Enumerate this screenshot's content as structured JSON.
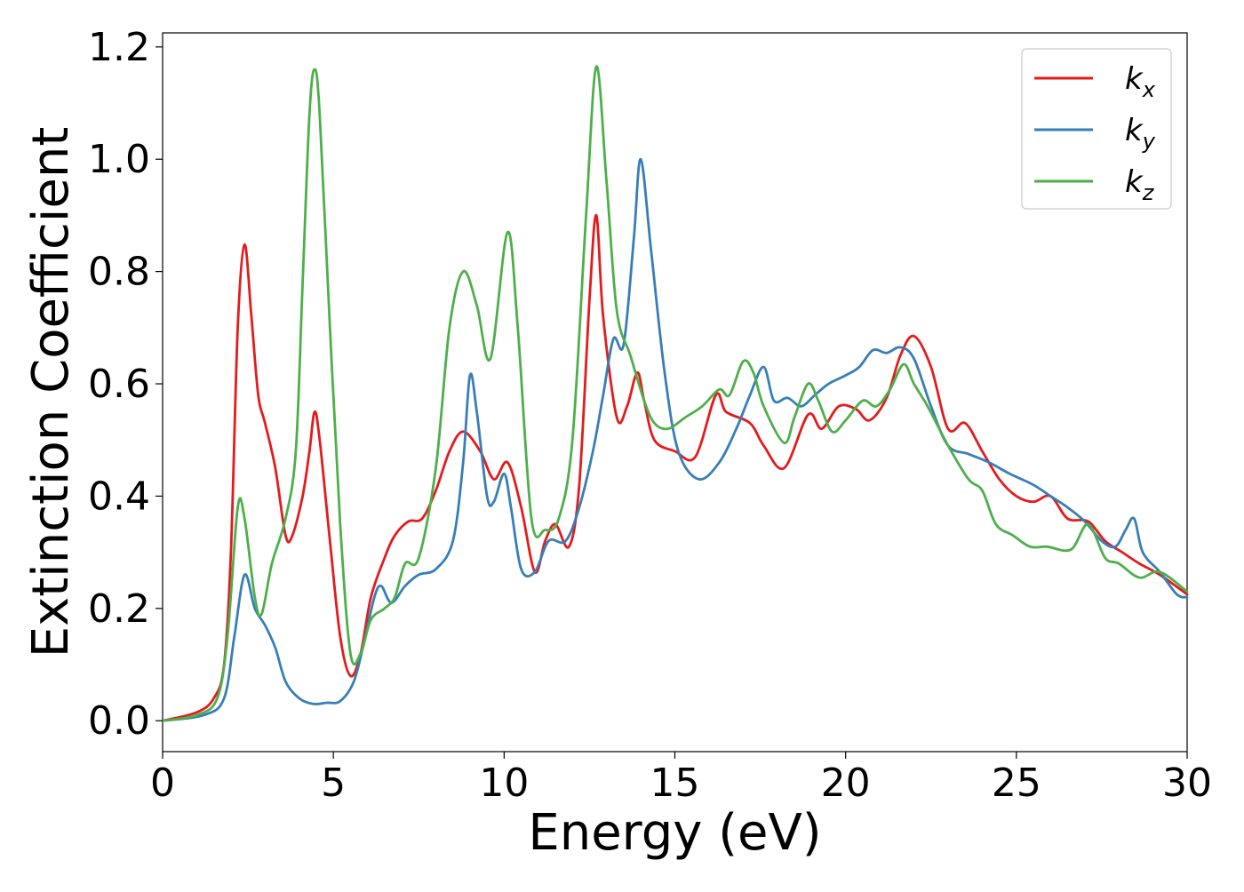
{
  "chart_data": {
    "type": "line",
    "title": "",
    "xlabel": "Energy (eV)",
    "ylabel": "Extinction Coefficient",
    "xlim": [
      0,
      30
    ],
    "ylim": [
      -0.055,
      1.225
    ],
    "xticks": [
      0,
      5,
      10,
      15,
      20,
      25,
      30
    ],
    "yticks": [
      0.0,
      0.2,
      0.4,
      0.6,
      0.8,
      1.0,
      1.2
    ],
    "xtick_labels": [
      "0",
      "5",
      "10",
      "15",
      "20",
      "25",
      "30"
    ],
    "ytick_labels": [
      "0.0",
      "0.2",
      "0.4",
      "0.6",
      "0.8",
      "1.0",
      "1.2"
    ],
    "grid": false,
    "legend_position": "top-right",
    "series": [
      {
        "name": "k_x",
        "label_base": "k",
        "label_sub": "x",
        "color": "#e41a1c",
        "points": [
          [
            0,
            0.0
          ],
          [
            1,
            0.015
          ],
          [
            1.5,
            0.04
          ],
          [
            1.8,
            0.1
          ],
          [
            2.0,
            0.3
          ],
          [
            2.2,
            0.7
          ],
          [
            2.4,
            0.848
          ],
          [
            2.6,
            0.72
          ],
          [
            2.8,
            0.58
          ],
          [
            3.0,
            0.53
          ],
          [
            3.3,
            0.45
          ],
          [
            3.6,
            0.33
          ],
          [
            3.8,
            0.33
          ],
          [
            4.1,
            0.4
          ],
          [
            4.3,
            0.48
          ],
          [
            4.45,
            0.55
          ],
          [
            4.6,
            0.5
          ],
          [
            4.9,
            0.32
          ],
          [
            5.2,
            0.15
          ],
          [
            5.5,
            0.08
          ],
          [
            5.8,
            0.12
          ],
          [
            6.1,
            0.22
          ],
          [
            6.5,
            0.29
          ],
          [
            6.8,
            0.33
          ],
          [
            7.2,
            0.355
          ],
          [
            7.6,
            0.36
          ],
          [
            8.0,
            0.41
          ],
          [
            8.4,
            0.48
          ],
          [
            8.8,
            0.515
          ],
          [
            9.3,
            0.48
          ],
          [
            9.7,
            0.43
          ],
          [
            10.1,
            0.46
          ],
          [
            10.5,
            0.38
          ],
          [
            10.9,
            0.265
          ],
          [
            11.2,
            0.32
          ],
          [
            11.5,
            0.35
          ],
          [
            11.9,
            0.31
          ],
          [
            12.2,
            0.42
          ],
          [
            12.5,
            0.75
          ],
          [
            12.7,
            0.9
          ],
          [
            12.9,
            0.72
          ],
          [
            13.3,
            0.54
          ],
          [
            13.6,
            0.56
          ],
          [
            13.9,
            0.62
          ],
          [
            14.1,
            0.57
          ],
          [
            14.4,
            0.5
          ],
          [
            15.0,
            0.48
          ],
          [
            15.6,
            0.47
          ],
          [
            16.2,
            0.58
          ],
          [
            16.5,
            0.55
          ],
          [
            17.2,
            0.53
          ],
          [
            17.6,
            0.49
          ],
          [
            18.2,
            0.45
          ],
          [
            18.9,
            0.545
          ],
          [
            19.3,
            0.52
          ],
          [
            19.8,
            0.56
          ],
          [
            20.3,
            0.555
          ],
          [
            20.7,
            0.535
          ],
          [
            21.2,
            0.575
          ],
          [
            21.6,
            0.65
          ],
          [
            22.0,
            0.685
          ],
          [
            22.5,
            0.63
          ],
          [
            23.0,
            0.52
          ],
          [
            23.5,
            0.53
          ],
          [
            24.0,
            0.48
          ],
          [
            24.5,
            0.43
          ],
          [
            25.0,
            0.4
          ],
          [
            25.5,
            0.39
          ],
          [
            26.0,
            0.4
          ],
          [
            26.5,
            0.36
          ],
          [
            27.1,
            0.355
          ],
          [
            27.6,
            0.32
          ],
          [
            28.1,
            0.3
          ],
          [
            28.6,
            0.28
          ],
          [
            29.2,
            0.26
          ],
          [
            30,
            0.225
          ]
        ]
      },
      {
        "name": "k_y",
        "label_base": "k",
        "label_sub": "y",
        "color": "#377eb8",
        "points": [
          [
            0,
            0.0
          ],
          [
            1.2,
            0.01
          ],
          [
            1.8,
            0.04
          ],
          [
            2.1,
            0.15
          ],
          [
            2.4,
            0.26
          ],
          [
            2.7,
            0.2
          ],
          [
            3.0,
            0.17
          ],
          [
            3.3,
            0.13
          ],
          [
            3.6,
            0.07
          ],
          [
            4.0,
            0.04
          ],
          [
            4.4,
            0.03
          ],
          [
            4.8,
            0.032
          ],
          [
            5.2,
            0.035
          ],
          [
            5.6,
            0.07
          ],
          [
            5.9,
            0.14
          ],
          [
            6.2,
            0.22
          ],
          [
            6.4,
            0.24
          ],
          [
            6.7,
            0.21
          ],
          [
            7.1,
            0.24
          ],
          [
            7.5,
            0.26
          ],
          [
            8.0,
            0.27
          ],
          [
            8.5,
            0.32
          ],
          [
            8.8,
            0.46
          ],
          [
            9.0,
            0.615
          ],
          [
            9.2,
            0.55
          ],
          [
            9.5,
            0.4
          ],
          [
            9.7,
            0.39
          ],
          [
            10.0,
            0.44
          ],
          [
            10.2,
            0.38
          ],
          [
            10.5,
            0.27
          ],
          [
            10.9,
            0.265
          ],
          [
            11.3,
            0.32
          ],
          [
            11.8,
            0.32
          ],
          [
            12.2,
            0.38
          ],
          [
            12.6,
            0.48
          ],
          [
            12.9,
            0.58
          ],
          [
            13.2,
            0.68
          ],
          [
            13.5,
            0.67
          ],
          [
            13.8,
            0.86
          ],
          [
            14.0,
            1.0
          ],
          [
            14.3,
            0.84
          ],
          [
            14.7,
            0.62
          ],
          [
            15.1,
            0.48
          ],
          [
            15.7,
            0.43
          ],
          [
            16.3,
            0.46
          ],
          [
            16.8,
            0.52
          ],
          [
            17.2,
            0.58
          ],
          [
            17.6,
            0.63
          ],
          [
            17.9,
            0.57
          ],
          [
            18.3,
            0.575
          ],
          [
            18.7,
            0.56
          ],
          [
            19.1,
            0.58
          ],
          [
            19.5,
            0.6
          ],
          [
            20.0,
            0.615
          ],
          [
            20.4,
            0.63
          ],
          [
            20.8,
            0.66
          ],
          [
            21.2,
            0.655
          ],
          [
            21.6,
            0.665
          ],
          [
            22.0,
            0.645
          ],
          [
            22.5,
            0.56
          ],
          [
            23.0,
            0.49
          ],
          [
            23.6,
            0.475
          ],
          [
            24.2,
            0.46
          ],
          [
            24.8,
            0.44
          ],
          [
            25.5,
            0.42
          ],
          [
            26.0,
            0.4
          ],
          [
            26.5,
            0.38
          ],
          [
            27.0,
            0.355
          ],
          [
            27.5,
            0.32
          ],
          [
            27.9,
            0.31
          ],
          [
            28.2,
            0.34
          ],
          [
            28.45,
            0.36
          ],
          [
            28.7,
            0.3
          ],
          [
            29.2,
            0.265
          ],
          [
            29.7,
            0.225
          ],
          [
            30,
            0.22
          ]
        ]
      },
      {
        "name": "k_z",
        "label_base": "k",
        "label_sub": "z",
        "color": "#4daf4a",
        "points": [
          [
            0,
            0.0
          ],
          [
            1.0,
            0.01
          ],
          [
            1.6,
            0.04
          ],
          [
            1.9,
            0.15
          ],
          [
            2.2,
            0.38
          ],
          [
            2.4,
            0.36
          ],
          [
            2.7,
            0.22
          ],
          [
            2.9,
            0.19
          ],
          [
            3.2,
            0.28
          ],
          [
            3.6,
            0.36
          ],
          [
            3.9,
            0.48
          ],
          [
            4.1,
            0.78
          ],
          [
            4.3,
            1.08
          ],
          [
            4.45,
            1.16
          ],
          [
            4.6,
            1.08
          ],
          [
            4.9,
            0.7
          ],
          [
            5.2,
            0.35
          ],
          [
            5.5,
            0.12
          ],
          [
            5.8,
            0.12
          ],
          [
            6.1,
            0.18
          ],
          [
            6.5,
            0.2
          ],
          [
            6.8,
            0.22
          ],
          [
            7.1,
            0.28
          ],
          [
            7.5,
            0.29
          ],
          [
            8.0,
            0.45
          ],
          [
            8.4,
            0.7
          ],
          [
            8.8,
            0.8
          ],
          [
            9.2,
            0.74
          ],
          [
            9.6,
            0.645
          ],
          [
            10.1,
            0.87
          ],
          [
            10.4,
            0.7
          ],
          [
            10.8,
            0.36
          ],
          [
            11.2,
            0.34
          ],
          [
            11.6,
            0.36
          ],
          [
            12.0,
            0.5
          ],
          [
            12.4,
            0.9
          ],
          [
            12.7,
            1.165
          ],
          [
            13.0,
            0.96
          ],
          [
            13.3,
            0.73
          ],
          [
            13.7,
            0.65
          ],
          [
            14.1,
            0.57
          ],
          [
            14.4,
            0.53
          ],
          [
            14.8,
            0.52
          ],
          [
            15.3,
            0.54
          ],
          [
            15.8,
            0.56
          ],
          [
            16.3,
            0.59
          ],
          [
            16.6,
            0.58
          ],
          [
            17.0,
            0.64
          ],
          [
            17.3,
            0.62
          ],
          [
            17.6,
            0.56
          ],
          [
            18.2,
            0.495
          ],
          [
            18.5,
            0.54
          ],
          [
            18.9,
            0.6
          ],
          [
            19.2,
            0.57
          ],
          [
            19.6,
            0.515
          ],
          [
            20.0,
            0.535
          ],
          [
            20.5,
            0.57
          ],
          [
            20.9,
            0.56
          ],
          [
            21.3,
            0.59
          ],
          [
            21.7,
            0.635
          ],
          [
            22.0,
            0.6
          ],
          [
            22.4,
            0.56
          ],
          [
            23.0,
            0.49
          ],
          [
            23.6,
            0.43
          ],
          [
            24.0,
            0.41
          ],
          [
            24.4,
            0.35
          ],
          [
            24.9,
            0.33
          ],
          [
            25.4,
            0.31
          ],
          [
            25.9,
            0.31
          ],
          [
            26.6,
            0.305
          ],
          [
            27.1,
            0.35
          ],
          [
            27.6,
            0.29
          ],
          [
            28.0,
            0.28
          ],
          [
            28.6,
            0.255
          ],
          [
            29.2,
            0.265
          ],
          [
            30,
            0.23
          ]
        ]
      }
    ]
  }
}
